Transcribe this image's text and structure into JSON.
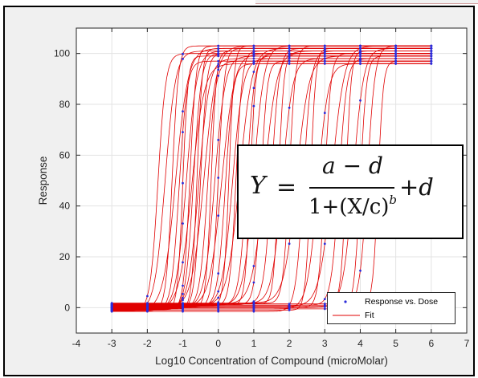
{
  "chart_data": {
    "type": "line",
    "title": "",
    "xlabel": "Log10 Concentration of Compound (microMolar)",
    "ylabel": "Response",
    "xlim": [
      -4,
      7
    ],
    "ylim": [
      -10,
      110
    ],
    "x_ticks": [
      "-4",
      "-3",
      "-2",
      "-1",
      "0",
      "1",
      "2",
      "3",
      "4",
      "5",
      "6",
      "7"
    ],
    "y_ticks": [
      "0",
      "20",
      "40",
      "60",
      "80",
      "100"
    ],
    "grid": true,
    "legend_position": "bottom-right",
    "dose_points": [
      -3,
      -2,
      -1,
      0,
      1,
      2,
      3,
      4,
      5,
      6
    ],
    "bottom_range": [
      -1,
      2
    ],
    "top_range": [
      95,
      104
    ],
    "series": [
      {
        "name": "Response vs. Dose",
        "style": "points",
        "color": "#2b2bd9"
      },
      {
        "name": "Fit",
        "style": "line",
        "color": "#e00000"
      }
    ],
    "curves": [
      {
        "d": -1.5,
        "a": 100,
        "c": -1.7,
        "b": 4
      },
      {
        "d": -1.4,
        "a": 101,
        "c": -1.5,
        "b": 3
      },
      {
        "d": -1.3,
        "a": 103,
        "c": -1.3,
        "b": 5
      },
      {
        "d": -1.2,
        "a": 102,
        "c": -1.2,
        "b": 2.5
      },
      {
        "d": -1.1,
        "a": 97,
        "c": -1.1,
        "b": 4
      },
      {
        "d": -1,
        "a": 99,
        "c": -1,
        "b": 6
      },
      {
        "d": -0.9,
        "a": 101,
        "c": -0.9,
        "b": 3
      },
      {
        "d": -0.8,
        "a": 103,
        "c": -0.8,
        "b": 5
      },
      {
        "d": -0.7,
        "a": 96,
        "c": -0.75,
        "b": 2.5
      },
      {
        "d": -0.6,
        "a": 100,
        "c": -0.7,
        "b": 4
      },
      {
        "d": -0.5,
        "a": 102,
        "c": -0.6,
        "b": 6
      },
      {
        "d": -0.4,
        "a": 98,
        "c": -0.55,
        "b": 3
      },
      {
        "d": -0.3,
        "a": 100,
        "c": -0.5,
        "b": 5
      },
      {
        "d": -0.2,
        "a": 103,
        "c": -0.4,
        "b": 2.5
      },
      {
        "d": -0.1,
        "a": 97,
        "c": -0.3,
        "b": 4
      },
      {
        "d": 0,
        "a": 101,
        "c": -0.2,
        "b": 6
      },
      {
        "d": 0.1,
        "a": 99,
        "c": -0.1,
        "b": 3
      },
      {
        "d": 0.2,
        "a": 102,
        "c": 0,
        "b": 5
      },
      {
        "d": 0.3,
        "a": 100,
        "c": 0.1,
        "b": 2.5
      },
      {
        "d": 0.4,
        "a": 96,
        "c": 0.2,
        "b": 4
      },
      {
        "d": 0.5,
        "a": 103,
        "c": 0.3,
        "b": 6
      },
      {
        "d": 0.6,
        "a": 98,
        "c": 0.4,
        "b": 3
      },
      {
        "d": 0.7,
        "a": 101,
        "c": 0.5,
        "b": 5
      },
      {
        "d": 0.8,
        "a": 102,
        "c": 0.6,
        "b": 2.5
      },
      {
        "d": 0.9,
        "a": 100,
        "c": 0.8,
        "b": 4
      },
      {
        "d": 1,
        "a": 99,
        "c": 0.9,
        "b": 6
      },
      {
        "d": 1.1,
        "a": 103,
        "c": 1,
        "b": 3
      },
      {
        "d": 1.2,
        "a": 97,
        "c": 1.2,
        "b": 5
      },
      {
        "d": 1.3,
        "a": 101,
        "c": 1.3,
        "b": 2.5
      },
      {
        "d": 1.4,
        "a": 102,
        "c": 1.5,
        "b": 4
      },
      {
        "d": 1.5,
        "a": 100,
        "c": 1.7,
        "b": 6
      },
      {
        "d": 1.6,
        "a": 98,
        "c": 1.8,
        "b": 3
      },
      {
        "d": 1.7,
        "a": 103,
        "c": 2,
        "b": 5
      },
      {
        "d": 1.8,
        "a": 99,
        "c": 2.2,
        "b": 2.5
      },
      {
        "d": -1.5,
        "a": 101,
        "c": 2.4,
        "b": 4
      },
      {
        "d": -1,
        "a": 102,
        "c": 2.6,
        "b": 6
      },
      {
        "d": -0.5,
        "a": 96,
        "c": 2.8,
        "b": 3
      },
      {
        "d": 0,
        "a": 100,
        "c": 3,
        "b": 5
      },
      {
        "d": 0.5,
        "a": 103,
        "c": 3.2,
        "b": 2.5
      },
      {
        "d": 1,
        "a": 98,
        "c": 3.4,
        "b": 4
      },
      {
        "d": 1.5,
        "a": 101,
        "c": 3.6,
        "b": 6
      },
      {
        "d": 0,
        "a": 102,
        "c": 3.8,
        "b": 3
      },
      {
        "d": -0.5,
        "a": 99,
        "c": 4,
        "b": 5
      },
      {
        "d": 0.5,
        "a": 103,
        "c": 4.2,
        "b": 4
      },
      {
        "d": 1,
        "a": 97,
        "c": 4.5,
        "b": 6
      }
    ]
  },
  "formula": {
    "lhs": "Y",
    "equals": "=",
    "numerator": "a − d",
    "denominator_base": "1+(X/c)",
    "exponent": "b",
    "tail": "+d"
  },
  "legend": {
    "items": [
      {
        "label": "Response vs. Dose"
      },
      {
        "label": "Fit"
      }
    ]
  },
  "colors": {
    "fit": "#e00000",
    "points": "#2b2bd9",
    "axes_background": "#ffffff",
    "figure_background": "#f0f0f0",
    "grid": "#e3e3e3",
    "axis": "#262626"
  }
}
